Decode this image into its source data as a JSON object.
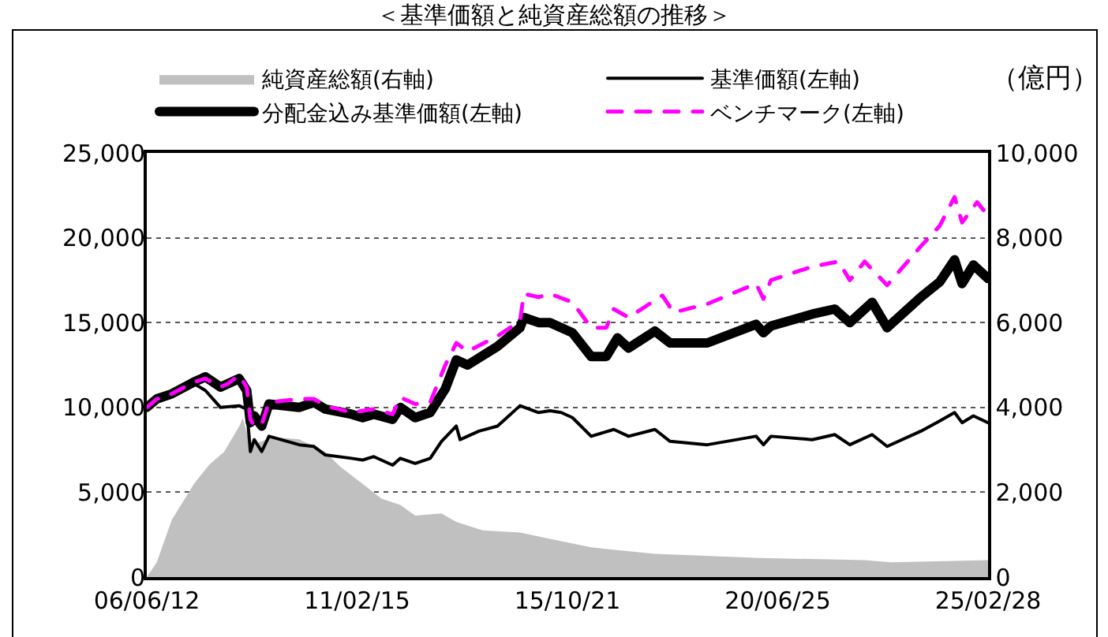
{
  "chart_data": {
    "type": "line",
    "title": "＜基準価額と純資産総額の推移＞",
    "y2label": "（億円）",
    "xlim": [
      "2006-06-12",
      "2025-02-28"
    ],
    "xticks": [
      {
        "value": "2006-06-12",
        "label": "06/06/12"
      },
      {
        "value": "2011-02-15",
        "label": "11/02/15"
      },
      {
        "value": "2015-10-21",
        "label": "15/10/21"
      },
      {
        "value": "2020-06-25",
        "label": "20/06/25"
      },
      {
        "value": "2025-02-28",
        "label": "25/02/28"
      }
    ],
    "ylim": [
      0,
      25000
    ],
    "yticks": [
      0,
      {
        "value": 5000,
        "label": "5,000"
      },
      {
        "value": 10000,
        "label": "10,000"
      },
      {
        "value": 15000,
        "label": "15,000"
      },
      {
        "value": 20000,
        "label": "20,000"
      },
      {
        "value": 25000,
        "label": "25,000"
      }
    ],
    "y2lim": [
      0,
      10000
    ],
    "y2ticks": [
      0,
      {
        "value": 2000,
        "label": "2,000"
      },
      {
        "value": 4000,
        "label": "4,000"
      },
      {
        "value": 6000,
        "label": "6,000"
      },
      {
        "value": 8000,
        "label": "8,000"
      },
      {
        "value": 10000,
        "label": "10,000"
      }
    ],
    "grid": "y",
    "legend": "top",
    "series": [
      {
        "name": "純資産総額(右軸)",
        "type": "area",
        "axis": "y2",
        "color": "#c0c0c0",
        "x": [
          "2006-06-12",
          "2006-09",
          "2007-01",
          "2007-07",
          "2007-11",
          "2008-03",
          "2008-07",
          "2008-08",
          "2008-10",
          "2009-04",
          "2009-11",
          "2010-06",
          "2010-10",
          "2011-04",
          "2011-09",
          "2012-02",
          "2012-06",
          "2013-01",
          "2013-05",
          "2013-12",
          "2014-10",
          "2015-06",
          "2016-05",
          "2017-10",
          "2020-02",
          "2022-06",
          "2023-01",
          "2025-02-28"
        ],
        "values": [
          0,
          350,
          1350,
          2200,
          2650,
          2950,
          3550,
          3750,
          3100,
          3300,
          3250,
          2950,
          2600,
          2200,
          1850,
          1700,
          1450,
          1500,
          1300,
          1100,
          1050,
          900,
          700,
          550,
          450,
          400,
          350,
          400
        ]
      },
      {
        "name": "基準価額(左軸)",
        "color": "#000000",
        "x": [
          "2006-06-12",
          "2006-09",
          "2007-01",
          "2007-07",
          "2007-10",
          "2008-02",
          "2008-07",
          "2008-09",
          "2008-10",
          "2008-11",
          "2009-01",
          "2009-03",
          "2009-11",
          "2010-03",
          "2010-06",
          "2011-01",
          "2011-04",
          "2011-07",
          "2011-12",
          "2012-02",
          "2012-06",
          "2012-10",
          "2013-01",
          "2013-05",
          "2013-06",
          "2013-11",
          "2014-04",
          "2014-10",
          "2015-03",
          "2015-06",
          "2015-09",
          "2015-12",
          "2016-05",
          "2016-11",
          "2017-03",
          "2017-10",
          "2018-02",
          "2018-12",
          "2020-01",
          "2020-03",
          "2020-05",
          "2021-04",
          "2021-10",
          "2022-02",
          "2022-08",
          "2022-12",
          "2023-09",
          "2024-02",
          "2024-06",
          "2024-08",
          "2024-11",
          "2025-02-28"
        ],
        "values": [
          10000,
          10500,
          10800,
          11400,
          11000,
          10000,
          10100,
          9900,
          7400,
          8100,
          7400,
          8300,
          7800,
          7700,
          7200,
          7000,
          6900,
          7100,
          6600,
          7000,
          6700,
          7000,
          8000,
          8900,
          8100,
          8600,
          8900,
          10100,
          9700,
          9800,
          9700,
          9400,
          8300,
          8700,
          8300,
          8700,
          8000,
          7800,
          8300,
          7800,
          8300,
          8100,
          8400,
          7800,
          8400,
          7700,
          8600,
          9200,
          9700,
          9100,
          9500,
          9100
        ]
      },
      {
        "name": "分配金込み基準価額(左軸)",
        "color": "#000000",
        "x": [
          "2006-06-12",
          "2006-09",
          "2007-01",
          "2007-07",
          "2007-10",
          "2008-02",
          "2008-04",
          "2008-07",
          "2008-09",
          "2008-10",
          "2008-11",
          "2009-01",
          "2009-03",
          "2009-11",
          "2010-03",
          "2010-06",
          "2011-01",
          "2011-04",
          "2011-07",
          "2011-12",
          "2012-02",
          "2012-06",
          "2012-10",
          "2013-02",
          "2013-05",
          "2013-08",
          "2014-04",
          "2014-10",
          "2014-11",
          "2015-03",
          "2015-06",
          "2015-12",
          "2016-05",
          "2016-09",
          "2016-12",
          "2017-03",
          "2017-10",
          "2018-02",
          "2018-12",
          "2020-01",
          "2020-03",
          "2020-05",
          "2021-04",
          "2021-10",
          "2022-02",
          "2022-08",
          "2022-12",
          "2023-09",
          "2024-02",
          "2024-06",
          "2024-08",
          "2024-11",
          "2025-02-28"
        ],
        "values": [
          10000,
          10500,
          10800,
          11500,
          11800,
          11200,
          11400,
          11700,
          11000,
          9100,
          9500,
          8900,
          10200,
          10000,
          10300,
          9900,
          9600,
          9400,
          9600,
          9300,
          10000,
          9400,
          9700,
          11100,
          12800,
          12500,
          13600,
          14700,
          15300,
          15000,
          15000,
          14400,
          13000,
          13000,
          14100,
          13500,
          14500,
          13800,
          13800,
          14900,
          14400,
          14800,
          15500,
          15800,
          15000,
          16200,
          14700,
          16500,
          17400,
          18700,
          17300,
          18400,
          17600
        ]
      },
      {
        "name": "ベンチマーク(左軸)",
        "color": "#ff00ff",
        "line_style": "dashed",
        "x": [
          "2006-06-12",
          "2006-09",
          "2007-01",
          "2007-07",
          "2007-10",
          "2008-02",
          "2008-04",
          "2008-07",
          "2008-09",
          "2008-10",
          "2008-11",
          "2009-01",
          "2009-03",
          "2009-11",
          "2010-03",
          "2010-06",
          "2011-01",
          "2011-07",
          "2011-12",
          "2012-02",
          "2012-06",
          "2012-10",
          "2013-02",
          "2013-05",
          "2013-08",
          "2014-04",
          "2014-10",
          "2014-11",
          "2015-03",
          "2015-06",
          "2015-12",
          "2016-05",
          "2016-09",
          "2016-11",
          "2017-03",
          "2017-12",
          "2018-03",
          "2018-12",
          "2020-01",
          "2020-03",
          "2020-05",
          "2021-04",
          "2021-11",
          "2022-02",
          "2022-06",
          "2022-12",
          "2023-09",
          "2024-02",
          "2024-06",
          "2024-08",
          "2024-12",
          "2025-02-28"
        ],
        "values": [
          10000,
          10500,
          10800,
          11500,
          11700,
          11200,
          11400,
          11900,
          11200,
          9300,
          8900,
          9000,
          10300,
          10500,
          10500,
          10100,
          9700,
          9900,
          9600,
          10600,
          10200,
          10300,
          12500,
          13800,
          13300,
          14200,
          15100,
          16700,
          16500,
          16700,
          16200,
          14700,
          14700,
          15800,
          15300,
          16600,
          15600,
          16100,
          17300,
          16400,
          17500,
          18300,
          18600,
          17500,
          18600,
          17200,
          19500,
          20700,
          22400,
          20900,
          22100,
          21300
        ]
      }
    ]
  }
}
